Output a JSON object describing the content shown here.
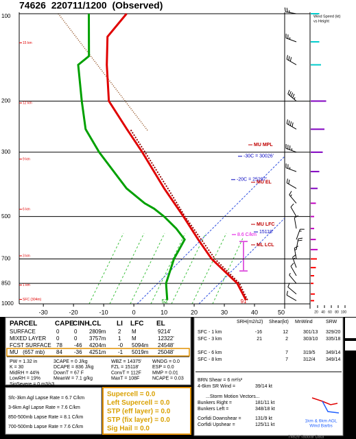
{
  "title": "74626  220711/1200  (Observed)",
  "chart_data": {
    "type": "skewt",
    "ylog": true,
    "ylim": [
      1000,
      100
    ],
    "yticks": [
      100,
      200,
      300,
      500,
      700,
      850,
      1000
    ],
    "xlim": [
      -38,
      50
    ],
    "xticks": [
      -30,
      -20,
      -10,
      0,
      10,
      20,
      30,
      40,
      50
    ],
    "grid": true,
    "series": [
      {
        "color": "#e00000",
        "width": 3,
        "pressure": [
          970,
          850,
          700,
          600,
          500,
          400,
          300,
          250,
          200,
          150,
          120,
          100
        ],
        "values": [
          35.9,
          27.5,
          10.9,
          0,
          -12.5,
          -28.2,
          -47.5,
          -60.2,
          -75.5,
          -88.2,
          -97.3,
          -98.6
        ]
      },
      {
        "color": "#00a000",
        "width": 3,
        "pressure": [
          970,
          850,
          700,
          600,
          550,
          500,
          470,
          450,
          400,
          300,
          250,
          200,
          150,
          140,
          100
        ],
        "values": [
          9.8,
          3.9,
          -1.6,
          -4.5,
          -10.9,
          -18.9,
          -24.8,
          -29.8,
          -40.7,
          -61.8,
          -73.9,
          -84.5,
          -97.7,
          -97,
          -111.1
        ]
      },
      {
        "color": "#900000",
        "width": 2,
        "dash": "2 2",
        "pressure": [
          970,
          850,
          700,
          500,
          400,
          300,
          250
        ],
        "values": [
          36.4,
          28.2,
          12,
          -12,
          -27,
          -46.6,
          -59.1
        ]
      }
    ],
    "surface_labels": [
      91,
      52
    ],
    "height_markers": [
      {
        "label": "15 km",
        "pressure": 126
      },
      {
        "label": "12 km",
        "pressure": 203
      },
      {
        "label": "9 km",
        "pressure": 317
      },
      {
        "label": "6 km",
        "pressure": 472
      },
      {
        "label": "3 km",
        "pressure": 683
      },
      {
        "label": "1 km",
        "pressure": 861
      },
      {
        "label": "SFC (304m)",
        "pressure": 965
      }
    ],
    "annotations": [
      {
        "label": "MU MPL",
        "pressure": 283,
        "color": "#c00000"
      },
      {
        "label": "-30C = 30026'",
        "pressure": 310,
        "color": "#0000c0"
      },
      {
        "label": "-20C = 25297'",
        "pressure": 373,
        "color": "#0000c0"
      },
      {
        "label": "MU EL",
        "pressure": 381,
        "color": "#c00000"
      },
      {
        "label": "MU LFC",
        "pressure": 532,
        "color": "#c00000"
      },
      {
        "label": "15118'",
        "pressure": 565,
        "color": "#0000c0"
      },
      {
        "label": "8.6 C/km",
        "pressure": 577,
        "color": "#e000e0"
      },
      {
        "label": "ML LCL",
        "pressure": 626,
        "color": "#c00000"
      }
    ],
    "winds": {
      "pressure": [
        975,
        925,
        850,
        800,
        750,
        700,
        650,
        600,
        550,
        500,
        450,
        400,
        350,
        300,
        250,
        200,
        150,
        125,
        100
      ],
      "direction": [
        300,
        310,
        320,
        330,
        340,
        350,
        10,
        20,
        350,
        330,
        320,
        300,
        290,
        290,
        300,
        310,
        300,
        290,
        280
      ],
      "speed": [
        10,
        12,
        8,
        10,
        15,
        18,
        20,
        15,
        10,
        10,
        15,
        20,
        25,
        35,
        40,
        45,
        30,
        25,
        25
      ],
      "colors": [
        "#ff0000",
        "#ff0000",
        "#ff0000",
        "#ff0000",
        "#ff0000",
        "#ff0000",
        "#c000c0",
        "#c000c0",
        "#c000c0",
        "#c000c0",
        "#c000c0",
        "#8000c0",
        "#8000c0",
        "#8000c0",
        "#8000c0",
        "#8000c0",
        "#00cccc",
        "#00cccc",
        "#00cccc"
      ]
    },
    "wind_speed_axis": {
      "title": [
        "Wind Speed (kt)",
        "vs Height"
      ],
      "ticks": [
        20,
        40,
        60,
        80,
        100
      ],
      "lim": [
        0,
        100
      ]
    }
  },
  "tables": {
    "parcel": {
      "header": [
        "PARCEL",
        "CAPE",
        "CINH",
        "LCL",
        "LI",
        "LFC",
        "EL"
      ],
      "rows": [
        [
          "SURFACE",
          "0",
          "0",
          "2809m",
          "2",
          "M",
          "9214'"
        ],
        [
          "MIXED LAYER",
          "0",
          "0",
          "3757m",
          "1",
          "M",
          "12322'"
        ],
        [
          "FCST SURFACE",
          "78",
          "-46",
          "4204m",
          "-0",
          "5094m",
          "24548'"
        ],
        [
          "MU   (657 mb)",
          "84",
          "-36",
          "4251m",
          "-1",
          "5019m",
          "25048'"
        ]
      ]
    },
    "indices": [
      [
        "PW = 1.32 in",
        "3CAPE = 0 J/kg",
        "WBZ = 14375'",
        "WNDG = 0.0"
      ],
      [
        "K = 30",
        "DCAPE = 836 J/kg",
        "FZL = 15118'",
        "ESP = 0.0"
      ],
      [
        "MidRH = 44%",
        "DownT = 67 F",
        "ConvT = 112F",
        "MMP = 0.01"
      ],
      [
        "LowRH = 19%",
        "MeanW = 7.1 g/kg",
        "MaxT = 108F",
        "NCAPE = 0.03"
      ],
      [
        "SigSevere = 0 m3/s3"
      ]
    ],
    "lapse_rates": [
      "Sfc-3km Agl Lapse Rate = 6.7 C/km",
      "3-6km Agl Lapse Rate = 7.6 C/km",
      "850-500mb Lapse Rate = 8.1 C/km",
      "700-500mb Lapse Rate = 7.6 C/km"
    ],
    "composite": [
      "Supercell = 0.0",
      "Left Supercell = 0.0",
      "STP (eff layer) = 0.0",
      "STP (fix layer) = 0.0",
      "Sig Hail = 0.0"
    ],
    "kinematics": {
      "header": [
        "SRH(m2/s2)",
        "Shear(kt)",
        "MnWind",
        "SRW"
      ],
      "rows": [
        [
          "SFC - 1 km",
          "-16",
          "12",
          "301/13",
          "329/20"
        ],
        [
          "SFC - 3 km",
          "21",
          "2",
          "303/10",
          "335/18"
        ],
        [
          "SFC - 6 km",
          null,
          "7",
          "319/5",
          "349/14"
        ],
        [
          "SFC - 8 km",
          null,
          "7",
          "312/4",
          "349/14"
        ]
      ]
    },
    "notes": [
      [
        "BRN Shear = 6 m²/s²"
      ],
      [
        "4-6km SR Wind =",
        "39/14 kt"
      ],
      [
        "...Storm Motion Vectors..."
      ],
      [
        "Bunkers Right =",
        "181/11 kt"
      ],
      [
        "Bunkers Left =",
        "348/18 kt"
      ],
      [
        "Corfidi Downshear =",
        "131/9 kt"
      ],
      [
        "Corfidi Upshear =",
        "125/11 kt"
      ]
    ],
    "hodo_label": [
      "1km & 6km AGL",
      "Wind Barbs"
    ],
    "footer": "74626 Tabular Data"
  }
}
